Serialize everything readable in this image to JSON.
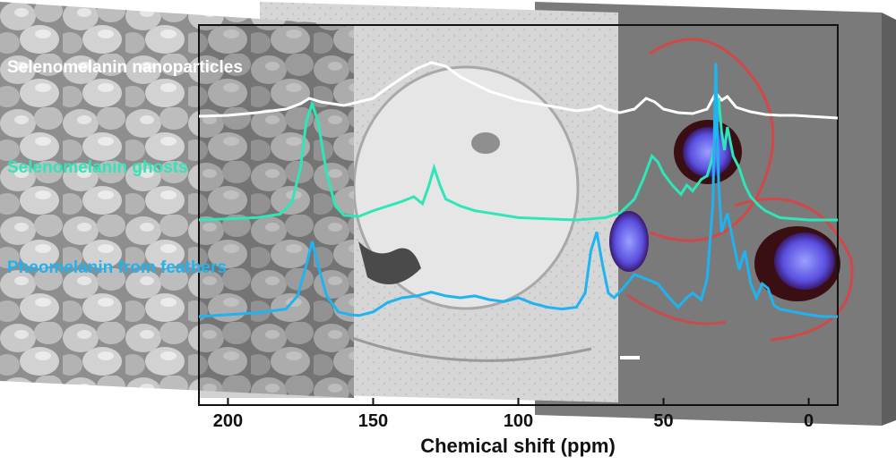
{
  "chart_data": {
    "type": "line",
    "xlabel": "Chemical shift (ppm)",
    "ylabel": "",
    "xlim": [
      210,
      -10
    ],
    "x_reversed": true,
    "xticks": [
      200,
      150,
      100,
      50,
      0
    ],
    "grid": false,
    "colors": {
      "nanoparticles": "#ffffff",
      "ghosts": "#2ee6b8",
      "pheomelanin": "#1fb3f0",
      "sem_panel": "#a6a6a6",
      "tem_panel": "#d8d8d8",
      "fluor_panel": "#7a7a7a",
      "fluor_red": "#e83b3b",
      "fluor_blue": "#5a4fe0"
    },
    "series": [
      {
        "name": "Selenomelanin nanoparticles",
        "color": "#ffffff",
        "x": [
          210,
          200,
          190,
          180,
          175,
          172,
          168,
          160,
          150,
          145,
          140,
          135,
          130,
          125,
          120,
          115,
          110,
          100,
          90,
          80,
          75,
          72,
          70,
          65,
          60,
          56,
          53,
          50,
          45,
          40,
          35,
          32,
          30,
          28,
          25,
          20,
          15,
          10,
          5,
          0,
          -5,
          -10
        ],
        "y": [
          0.02,
          0.03,
          0.06,
          0.1,
          0.16,
          0.22,
          0.18,
          0.14,
          0.22,
          0.34,
          0.45,
          0.55,
          0.62,
          0.58,
          0.46,
          0.38,
          0.3,
          0.2,
          0.14,
          0.08,
          0.1,
          0.14,
          0.1,
          0.06,
          0.1,
          0.22,
          0.18,
          0.1,
          0.06,
          0.05,
          0.1,
          0.28,
          0.2,
          0.24,
          0.12,
          0.07,
          0.04,
          0.03,
          0.03,
          0.02,
          0.01,
          0.0
        ]
      },
      {
        "name": "Selenomelanin ghosts",
        "color": "#2ee6b8",
        "x": [
          210,
          200,
          190,
          182,
          178,
          175,
          173,
          171,
          169,
          166,
          163,
          160,
          155,
          150,
          145,
          140,
          136,
          133,
          131,
          129,
          127,
          125,
          120,
          115,
          110,
          100,
          90,
          80,
          75,
          70,
          65,
          60,
          57,
          54,
          52,
          50,
          47,
          44,
          42,
          40,
          37,
          35,
          33,
          31,
          30,
          29,
          28,
          26,
          24,
          22,
          20,
          17,
          15,
          10,
          5,
          0,
          -5,
          -10
        ],
        "y": [
          0.0,
          0.01,
          0.02,
          0.05,
          0.15,
          0.45,
          0.85,
          1.0,
          0.85,
          0.4,
          0.12,
          0.04,
          0.03,
          0.08,
          0.12,
          0.16,
          0.2,
          0.14,
          0.28,
          0.45,
          0.3,
          0.18,
          0.12,
          0.08,
          0.06,
          0.02,
          0.01,
          0.0,
          0.01,
          0.02,
          0.06,
          0.18,
          0.35,
          0.55,
          0.5,
          0.4,
          0.3,
          0.22,
          0.3,
          0.25,
          0.35,
          0.38,
          0.55,
          1.05,
          0.75,
          0.6,
          0.8,
          0.55,
          0.45,
          0.3,
          0.2,
          0.12,
          0.08,
          0.02,
          0.01,
          0.0,
          0.0,
          0.0
        ]
      },
      {
        "name": "Pheomelanin from feathers",
        "color": "#1fb3f0",
        "x": [
          210,
          200,
          190,
          180,
          176,
          173,
          171,
          169,
          166,
          162,
          158,
          155,
          150,
          145,
          140,
          135,
          130,
          125,
          120,
          115,
          110,
          105,
          100,
          95,
          90,
          85,
          80,
          77,
          75,
          73,
          71,
          69,
          67,
          64,
          60,
          56,
          52,
          48,
          45,
          42,
          40,
          37,
          35,
          33,
          32,
          31,
          30,
          28,
          26,
          24,
          22,
          20,
          18,
          16,
          14,
          12,
          10,
          5,
          0,
          -5,
          -10
        ],
        "y": [
          0.0,
          0.02,
          0.04,
          0.08,
          0.22,
          0.55,
          0.8,
          0.55,
          0.22,
          0.05,
          0.02,
          0.01,
          0.05,
          0.15,
          0.2,
          0.22,
          0.26,
          0.22,
          0.2,
          0.22,
          0.18,
          0.16,
          0.2,
          0.14,
          0.1,
          0.08,
          0.1,
          0.25,
          0.7,
          0.9,
          0.55,
          0.25,
          0.2,
          0.3,
          0.45,
          0.4,
          0.35,
          0.2,
          0.1,
          0.2,
          0.25,
          0.18,
          0.4,
          1.2,
          2.7,
          1.4,
          0.9,
          1.1,
          0.8,
          0.5,
          0.7,
          0.35,
          0.2,
          0.35,
          0.3,
          0.12,
          0.08,
          0.05,
          0.02,
          0.0,
          0.0
        ]
      }
    ]
  }
}
